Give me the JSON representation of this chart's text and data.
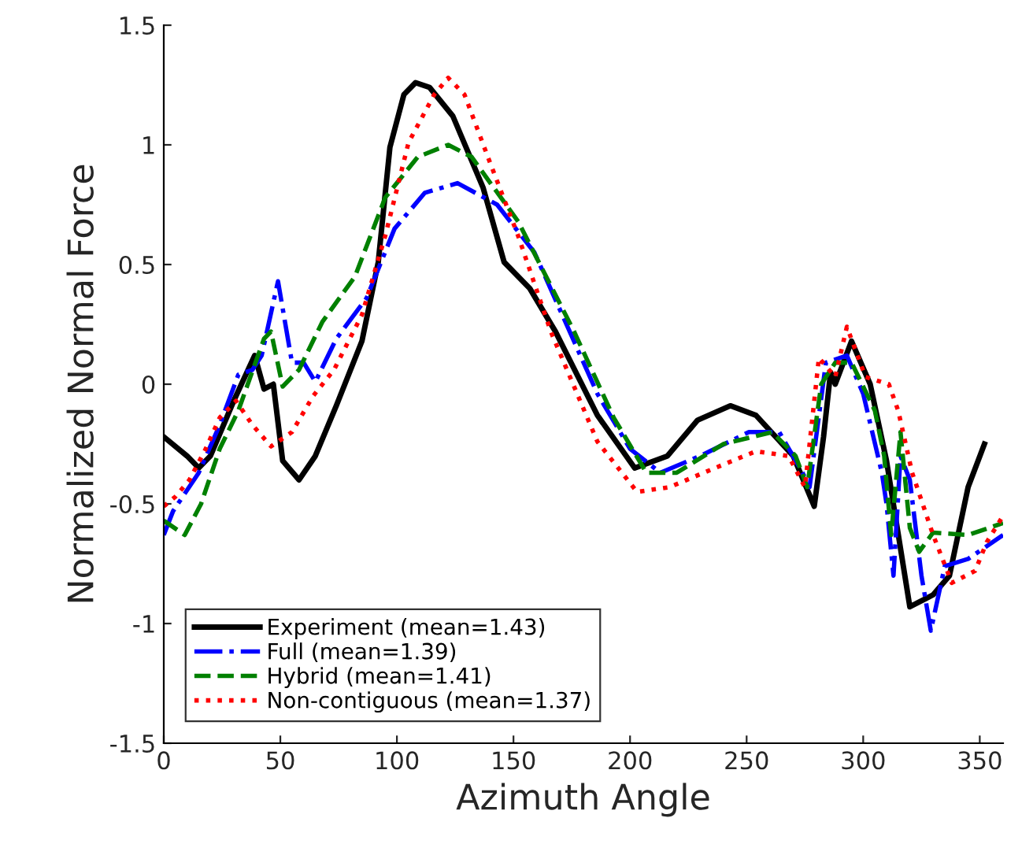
{
  "chart_data": {
    "type": "line",
    "xlabel": "Azimuth Angle",
    "ylabel": "Normalized Normal Force",
    "xlim": [
      0,
      360
    ],
    "ylim": [
      -1.5,
      1.5
    ],
    "xticks": [
      0,
      50,
      100,
      150,
      200,
      250,
      300,
      350
    ],
    "yticks": [
      -1.5,
      -1,
      -0.5,
      0,
      0.5,
      1,
      1.5
    ],
    "grid": false,
    "legend": "bottom left",
    "series": [
      {
        "name": "Experiment (mean=1.43)",
        "color": "#000000",
        "line_style": "solid",
        "x": [
          0,
          10,
          15,
          20,
          30,
          39,
          43,
          47,
          51,
          58,
          65,
          74,
          85,
          92,
          97,
          103,
          108,
          114,
          124,
          137,
          146,
          157,
          168,
          186,
          202,
          216,
          229,
          243,
          254,
          270,
          279,
          283,
          286,
          288,
          295,
          303,
          310,
          320,
          330,
          337,
          345,
          352
        ],
        "values": [
          -0.22,
          -0.3,
          -0.35,
          -0.3,
          -0.07,
          0.12,
          -0.02,
          0,
          -0.32,
          -0.4,
          -0.3,
          -0.09,
          0.18,
          0.51,
          0.99,
          1.21,
          1.26,
          1.24,
          1.12,
          0.82,
          0.51,
          0.4,
          0.22,
          -0.13,
          -0.35,
          -0.3,
          -0.15,
          -0.09,
          -0.13,
          -0.3,
          -0.51,
          -0.22,
          0.05,
          0,
          0.18,
          0,
          -0.32,
          -0.93,
          -0.88,
          -0.8,
          -0.43,
          -0.25
        ]
      },
      {
        "name": "Full (mean=1.39)",
        "color": "#0000ff",
        "line_style": "dashdot",
        "x": [
          0,
          4,
          15,
          24,
          32,
          38,
          42,
          49,
          55,
          60,
          65,
          74,
          87,
          99,
          112,
          126,
          143,
          159,
          186,
          200,
          213,
          230,
          251,
          264,
          274,
          277,
          284,
          293,
          300,
          308,
          310,
          313,
          316,
          320,
          325,
          329,
          335,
          345,
          360
        ],
        "values": [
          -0.63,
          -0.53,
          -0.37,
          -0.17,
          0.04,
          0.06,
          0.12,
          0.43,
          0.09,
          0.09,
          0.01,
          0.19,
          0.36,
          0.65,
          0.8,
          0.84,
          0.75,
          0.55,
          -0.04,
          -0.27,
          -0.37,
          -0.3,
          -0.2,
          -0.2,
          -0.37,
          -0.43,
          0.09,
          0.12,
          -0.04,
          -0.37,
          -0.5,
          -0.8,
          -0.3,
          -0.4,
          -0.8,
          -1.03,
          -0.76,
          -0.73,
          -0.63
        ]
      },
      {
        "name": "Hybrid (mean=1.41)",
        "color": "#008000",
        "line_style": "dashed",
        "x": [
          0,
          9,
          16,
          24,
          32,
          43,
          46,
          51,
          58,
          68,
          82,
          95,
          109,
          122,
          132,
          152,
          176,
          193,
          207,
          220,
          240,
          261,
          271,
          276,
          282,
          288,
          295,
          305,
          309,
          312,
          316,
          320,
          324,
          330,
          345,
          360
        ],
        "values": [
          -0.57,
          -0.63,
          -0.5,
          -0.27,
          -0.11,
          0.19,
          0.22,
          -0.01,
          0.06,
          0.26,
          0.45,
          0.78,
          0.95,
          1.0,
          0.95,
          0.68,
          0.22,
          -0.14,
          -0.37,
          -0.37,
          -0.25,
          -0.2,
          -0.3,
          -0.43,
          0,
          0.09,
          0.09,
          -0.11,
          -0.3,
          -0.63,
          -0.2,
          -0.6,
          -0.7,
          -0.62,
          -0.63,
          -0.58
        ]
      },
      {
        "name": "Non-contiguous (mean=1.37)",
        "color": "#ff0000",
        "line_style": "dotted",
        "x": [
          0,
          5,
          11,
          18,
          24,
          31,
          38,
          46,
          55,
          64,
          73,
          85,
          95,
          105,
          116,
          122,
          129,
          139,
          152,
          166,
          186,
          203,
          217,
          234,
          254,
          268,
          275,
          281,
          288,
          293,
          301,
          311,
          315,
          321,
          330,
          338,
          348,
          353,
          360
        ],
        "values": [
          -0.51,
          -0.47,
          -0.4,
          -0.27,
          -0.14,
          -0.07,
          -0.17,
          -0.26,
          -0.2,
          -0.05,
          0.06,
          0.29,
          0.62,
          1.01,
          1.21,
          1.28,
          1.21,
          0.95,
          0.62,
          0.22,
          -0.24,
          -0.45,
          -0.43,
          -0.36,
          -0.28,
          -0.3,
          -0.43,
          0.11,
          0.03,
          0.24,
          0.03,
          0,
          -0.11,
          -0.37,
          -0.63,
          -0.83,
          -0.78,
          -0.66,
          -0.55
        ]
      }
    ]
  }
}
